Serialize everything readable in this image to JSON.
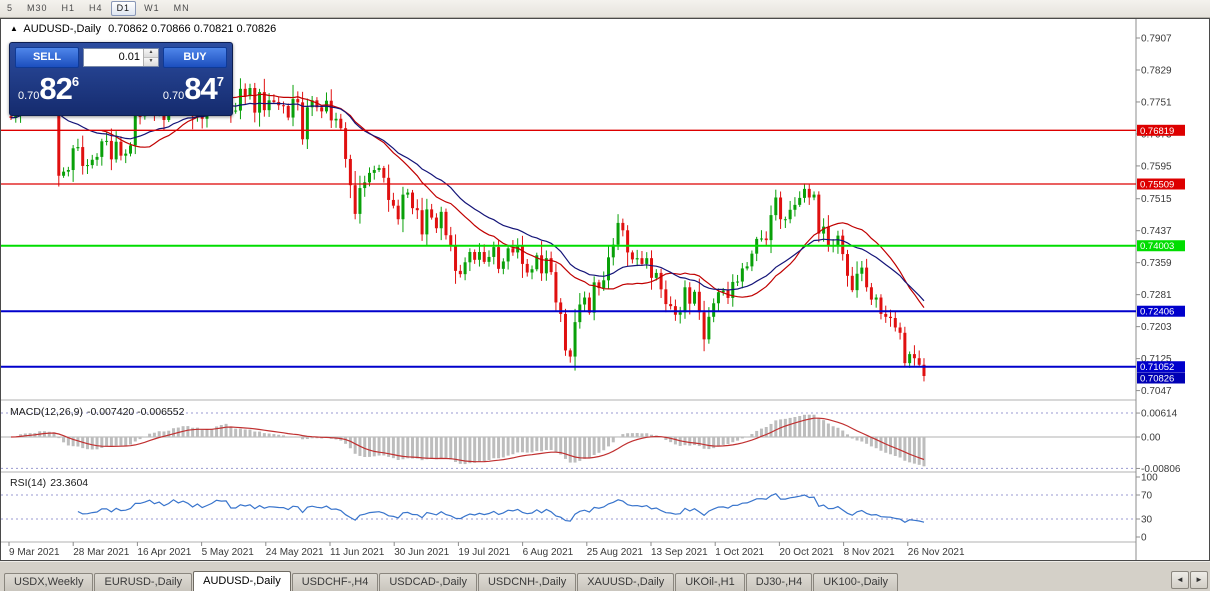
{
  "toolbar": {
    "timeframes": [
      {
        "label": "5",
        "active": false
      },
      {
        "label": "M30",
        "active": false
      },
      {
        "label": "H1",
        "active": false
      },
      {
        "label": "H4",
        "active": false
      },
      {
        "label": "D1",
        "active": true
      },
      {
        "label": "W1",
        "active": false
      },
      {
        "label": "MN",
        "active": false
      }
    ]
  },
  "icons": {
    "title_marker": "▲",
    "spinner_up": "▲",
    "spinner_down": "▼",
    "nav_left": "◄",
    "nav_right": "►"
  },
  "chart": {
    "title_symbol": "AUDUSD-,Daily",
    "title_ohlc": "0.70862 0.70866 0.70821 0.70826",
    "widget": {
      "sell_label": "SELL",
      "buy_label": "BUY",
      "lot_value": "0.01",
      "sell_price": {
        "prefix": "0.70",
        "main": "82",
        "pip": "6"
      },
      "buy_price": {
        "prefix": "0.70",
        "main": "84",
        "pip": "7"
      }
    }
  },
  "chart_data": {
    "type": "candlestick",
    "symbol": "AUDUSD",
    "timeframe": "Daily",
    "first_open": 0.7716,
    "closes": [
      0.7712,
      0.7729,
      0.7786,
      0.7758,
      0.775,
      0.7745,
      0.7803,
      0.776,
      0.7745,
      0.7742,
      0.7571,
      0.7581,
      0.7585,
      0.7638,
      0.7641,
      0.7595,
      0.7597,
      0.761,
      0.7617,
      0.7655,
      0.7656,
      0.7611,
      0.7654,
      0.762,
      0.7625,
      0.7645,
      0.7717,
      0.7716,
      0.7735,
      0.7765,
      0.7726,
      0.775,
      0.7707,
      0.7739,
      0.7802,
      0.7765,
      0.7795,
      0.7768,
      0.7716,
      0.7765,
      0.771,
      0.7745,
      0.7782,
      0.7843,
      0.7833,
      0.7837,
      0.7729,
      0.773,
      0.7783,
      0.7765,
      0.7785,
      0.7725,
      0.7775,
      0.7731,
      0.7755,
      0.7751,
      0.7743,
      0.7741,
      0.7713,
      0.7758,
      0.775,
      0.766,
      0.7738,
      0.7755,
      0.7738,
      0.7728,
      0.7754,
      0.7706,
      0.771,
      0.7687,
      0.7612,
      0.7548,
      0.7478,
      0.7541,
      0.7555,
      0.7578,
      0.7585,
      0.759,
      0.7566,
      0.7512,
      0.7498,
      0.7465,
      0.7525,
      0.753,
      0.7492,
      0.7487,
      0.7428,
      0.7489,
      0.7469,
      0.7443,
      0.7483,
      0.7426,
      0.74,
      0.7339,
      0.7331,
      0.736,
      0.7385,
      0.7366,
      0.7385,
      0.7361,
      0.7373,
      0.7397,
      0.7344,
      0.7362,
      0.7394,
      0.7384,
      0.7401,
      0.7356,
      0.7335,
      0.7343,
      0.7377,
      0.7333,
      0.737,
      0.7336,
      0.7262,
      0.7234,
      0.7145,
      0.713,
      0.7214,
      0.7257,
      0.7274,
      0.7237,
      0.7311,
      0.7297,
      0.7316,
      0.7372,
      0.7403,
      0.7456,
      0.7438,
      0.7384,
      0.7367,
      0.737,
      0.7356,
      0.737,
      0.7322,
      0.7334,
      0.7294,
      0.7258,
      0.7253,
      0.7232,
      0.7238,
      0.7299,
      0.7259,
      0.7288,
      0.7238,
      0.7172,
      0.7227,
      0.726,
      0.7287,
      0.7291,
      0.7273,
      0.7312,
      0.7313,
      0.7345,
      0.735,
      0.7381,
      0.7417,
      0.7418,
      0.7414,
      0.7475,
      0.7518,
      0.7465,
      0.7465,
      0.7488,
      0.75,
      0.7517,
      0.7539,
      0.7518,
      0.7525,
      0.743,
      0.7447,
      0.7399,
      0.7402,
      0.7425,
      0.738,
      0.7327,
      0.7292,
      0.7332,
      0.7347,
      0.7299,
      0.7269,
      0.7274,
      0.7234,
      0.7227,
      0.7224,
      0.7201,
      0.7188,
      0.7114,
      0.7136,
      0.7126,
      0.711,
      0.70826
    ],
    "price_axis": {
      "max": 0.7907,
      "values": [
        0.7907,
        0.7829,
        0.7751,
        0.7673,
        0.7595,
        0.7515,
        0.7437,
        0.7359,
        0.7281,
        0.7203,
        0.7125,
        0.7047
      ],
      "labels": [
        "0.7907",
        "0.7829",
        "0.7751",
        "0.7673",
        "0.7595",
        "0.7515",
        "0.7437",
        "0.7359",
        "0.7281",
        "0.7203",
        "0.7125",
        "0.7047"
      ]
    },
    "hlines": [
      {
        "value": 0.76819,
        "label": "0.76819",
        "color": "#dd0000",
        "width": 1.3
      },
      {
        "value": 0.75509,
        "label": "0.75509",
        "color": "#dd0000",
        "width": 1.3
      },
      {
        "value": 0.74003,
        "label": "0.74003",
        "color": "#00dd00",
        "width": 2
      },
      {
        "value": 0.72406,
        "label": "0.72406",
        "color": "#0000cc",
        "width": 2
      },
      {
        "value": 0.71052,
        "label": "0.71052",
        "color": "#0000cc",
        "width": 2
      }
    ],
    "current_price": {
      "value": 0.70826,
      "label": "0.70826",
      "color": "#0000b4"
    },
    "date_labels": [
      "9 Mar 2021",
      "28 Mar 2021",
      "16 Apr 2021",
      "5 May 2021",
      "24 May 2021",
      "11 Jun 2021",
      "30 Jun 2021",
      "19 Jul 2021",
      "6 Aug 2021",
      "25 Aug 2021",
      "13 Sep 2021",
      "1 Oct 2021",
      "20 Oct 2021",
      "8 Nov 2021",
      "26 Nov 2021"
    ],
    "indicators": {
      "macd": {
        "label": "MACD(12,26,9)",
        "values_text": "-0.007420 -0.006552",
        "params": [
          12,
          26,
          9
        ],
        "axis": [
          {
            "value": 0.00614,
            "label": "0.00614"
          },
          {
            "value": 0,
            "label": "0.00"
          },
          {
            "value": -0.00806,
            "label": "-0.00806"
          }
        ]
      },
      "rsi": {
        "label": "RSI(14)",
        "value_text": "23.3604",
        "period": 14,
        "level_values": [
          70,
          30
        ],
        "axis": [
          {
            "value": 100,
            "label": "100"
          },
          {
            "value": 70,
            "label": "70"
          },
          {
            "value": 30,
            "label": "30"
          },
          {
            "value": 0,
            "label": "0"
          }
        ]
      }
    },
    "colors": {
      "bull": "#09a009",
      "bear": "#e01010",
      "ma_fast": "#c00000",
      "ma_slow": "#141478",
      "macd_hist": "#bdbdbd",
      "macd_signal": "#c03030",
      "rsi": "#3874cc",
      "level_dash": "#9a9ad0",
      "axis_text": "#3a3a3a"
    }
  },
  "tabs": {
    "items": [
      {
        "label": "USDX,Weekly",
        "active": false
      },
      {
        "label": "EURUSD-,Daily",
        "active": false
      },
      {
        "label": "AUDUSD-,Daily",
        "active": true
      },
      {
        "label": "USDCHF-,H4",
        "active": false
      },
      {
        "label": "USDCAD-,Daily",
        "active": false
      },
      {
        "label": "USDCNH-,Daily",
        "active": false
      },
      {
        "label": "XAUUSD-,Daily",
        "active": false
      },
      {
        "label": "UKOil-,H1",
        "active": false
      },
      {
        "label": "DJ30-,H4",
        "active": false
      },
      {
        "label": "UK100-,Daily",
        "active": false
      }
    ]
  }
}
